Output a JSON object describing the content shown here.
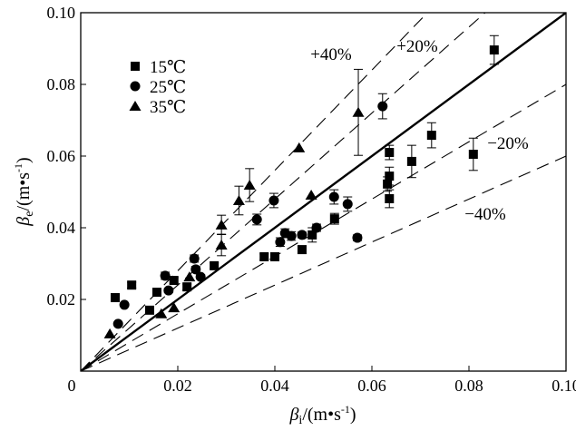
{
  "chart_data": {
    "type": "scatter",
    "title": "",
    "xlabel": "βi/(m•s⁻¹)",
    "xlabel_symbol": "β",
    "xlabel_sub": "i",
    "xlabel_unit": "/(m•s",
    "xlabel_sup": "-1",
    "xlabel_close": ")",
    "ylabel": "βe/(m•s⁻¹)",
    "ylabel_symbol": "β",
    "ylabel_sub": "e",
    "ylabel_unit": "/(m•s",
    "ylabel_sup": "-1",
    "ylabel_close": ")",
    "xlim": [
      0,
      0.1
    ],
    "ylim": [
      0,
      0.1
    ],
    "xticks": [
      0,
      0.02,
      0.04,
      0.06,
      0.08,
      0.1
    ],
    "xtick_labels": [
      "0",
      "0.02",
      "0.04",
      "0.06",
      "0.08",
      "0.10"
    ],
    "yticks": [
      0.02,
      0.04,
      0.06,
      0.08,
      0.1
    ],
    "ytick_labels": [
      "0.02",
      "0.04",
      "0.06",
      "0.08",
      "0.10"
    ],
    "grid": false,
    "legend_position": "top-left",
    "reference_lines": [
      {
        "name": "y=x",
        "slope": 1.0,
        "style": "solid",
        "label": ""
      },
      {
        "name": "+40%",
        "slope": 1.4,
        "style": "dashed",
        "label": "+40%"
      },
      {
        "name": "+20%",
        "slope": 1.2,
        "style": "dashed",
        "label": "+20%"
      },
      {
        "name": "-20%",
        "slope": 0.8,
        "style": "dashed",
        "label": "−20%"
      },
      {
        "name": "-40%",
        "slope": 0.6,
        "style": "dashed",
        "label": "−40%"
      }
    ],
    "series": [
      {
        "name": "15℃",
        "marker": "square",
        "points": [
          {
            "x": 0.0071,
            "y": 0.0205,
            "err": 0.0008
          },
          {
            "x": 0.0105,
            "y": 0.024,
            "err": 0.0008
          },
          {
            "x": 0.0142,
            "y": 0.017,
            "err": 0.0006
          },
          {
            "x": 0.0157,
            "y": 0.022,
            "err": 0.0007
          },
          {
            "x": 0.0192,
            "y": 0.0253,
            "err": 0.0008
          },
          {
            "x": 0.0219,
            "y": 0.0235,
            "err": 0.0008
          },
          {
            "x": 0.0275,
            "y": 0.0294,
            "err": 0.0008
          },
          {
            "x": 0.0378,
            "y": 0.0319,
            "err": 0.0008
          },
          {
            "x": 0.04,
            "y": 0.0319,
            "err": 0.0008
          },
          {
            "x": 0.0456,
            "y": 0.0339,
            "err": 0.001
          },
          {
            "x": 0.0477,
            "y": 0.038,
            "err": 0.002
          },
          {
            "x": 0.0523,
            "y": 0.0425,
            "err": 0.0015
          },
          {
            "x": 0.0632,
            "y": 0.0522,
            "err": 0.002
          },
          {
            "x": 0.0636,
            "y": 0.0544,
            "err": 0.0025
          },
          {
            "x": 0.0636,
            "y": 0.0481,
            "err": 0.0025
          },
          {
            "x": 0.0636,
            "y": 0.061,
            "err": 0.002
          },
          {
            "x": 0.0682,
            "y": 0.0585,
            "err": 0.0045
          },
          {
            "x": 0.0723,
            "y": 0.0658,
            "err": 0.0035
          },
          {
            "x": 0.0809,
            "y": 0.0605,
            "err": 0.0045
          },
          {
            "x": 0.0852,
            "y": 0.0896,
            "err": 0.004
          }
        ]
      },
      {
        "name": "25℃",
        "marker": "circle",
        "points": [
          {
            "x": 0.0077,
            "y": 0.0132,
            "err": 0.0
          },
          {
            "x": 0.009,
            "y": 0.0185,
            "err": 0.0
          },
          {
            "x": 0.0174,
            "y": 0.0266,
            "err": 0.001
          },
          {
            "x": 0.0181,
            "y": 0.0225,
            "err": 0.0006
          },
          {
            "x": 0.0234,
            "y": 0.0314,
            "err": 0.001
          },
          {
            "x": 0.0237,
            "y": 0.0284,
            "err": 0.0008
          },
          {
            "x": 0.0247,
            "y": 0.0263,
            "err": 0.0006
          },
          {
            "x": 0.0363,
            "y": 0.0423,
            "err": 0.0015
          },
          {
            "x": 0.0398,
            "y": 0.0476,
            "err": 0.002
          },
          {
            "x": 0.0411,
            "y": 0.036,
            "err": 0.0012
          },
          {
            "x": 0.0421,
            "y": 0.0385,
            "err": 0.0012
          },
          {
            "x": 0.0434,
            "y": 0.0377,
            "err": 0.0012
          },
          {
            "x": 0.0456,
            "y": 0.038,
            "err": 0.0008
          },
          {
            "x": 0.0486,
            "y": 0.04,
            "err": 0.001
          },
          {
            "x": 0.0522,
            "y": 0.0486,
            "err": 0.002
          },
          {
            "x": 0.055,
            "y": 0.0466,
            "err": 0.002
          },
          {
            "x": 0.057,
            "y": 0.0372,
            "err": 0.0008
          },
          {
            "x": 0.0622,
            "y": 0.0739,
            "err": 0.0035
          }
        ]
      },
      {
        "name": "35℃",
        "marker": "triangle",
        "points": [
          {
            "x": 0.006,
            "y": 0.0104,
            "err": 0.0
          },
          {
            "x": 0.0166,
            "y": 0.016,
            "err": 0.0
          },
          {
            "x": 0.0192,
            "y": 0.0177,
            "err": 0.0
          },
          {
            "x": 0.0224,
            "y": 0.0263,
            "err": 0.0
          },
          {
            "x": 0.029,
            "y": 0.0352,
            "err": 0.003
          },
          {
            "x": 0.029,
            "y": 0.0408,
            "err": 0.0027
          },
          {
            "x": 0.0326,
            "y": 0.0476,
            "err": 0.004
          },
          {
            "x": 0.0348,
            "y": 0.0519,
            "err": 0.0046
          },
          {
            "x": 0.045,
            "y": 0.0623,
            "err": 0.0
          },
          {
            "x": 0.0475,
            "y": 0.0491,
            "err": 0.0
          },
          {
            "x": 0.0572,
            "y": 0.0722,
            "err": 0.012
          }
        ]
      }
    ]
  }
}
